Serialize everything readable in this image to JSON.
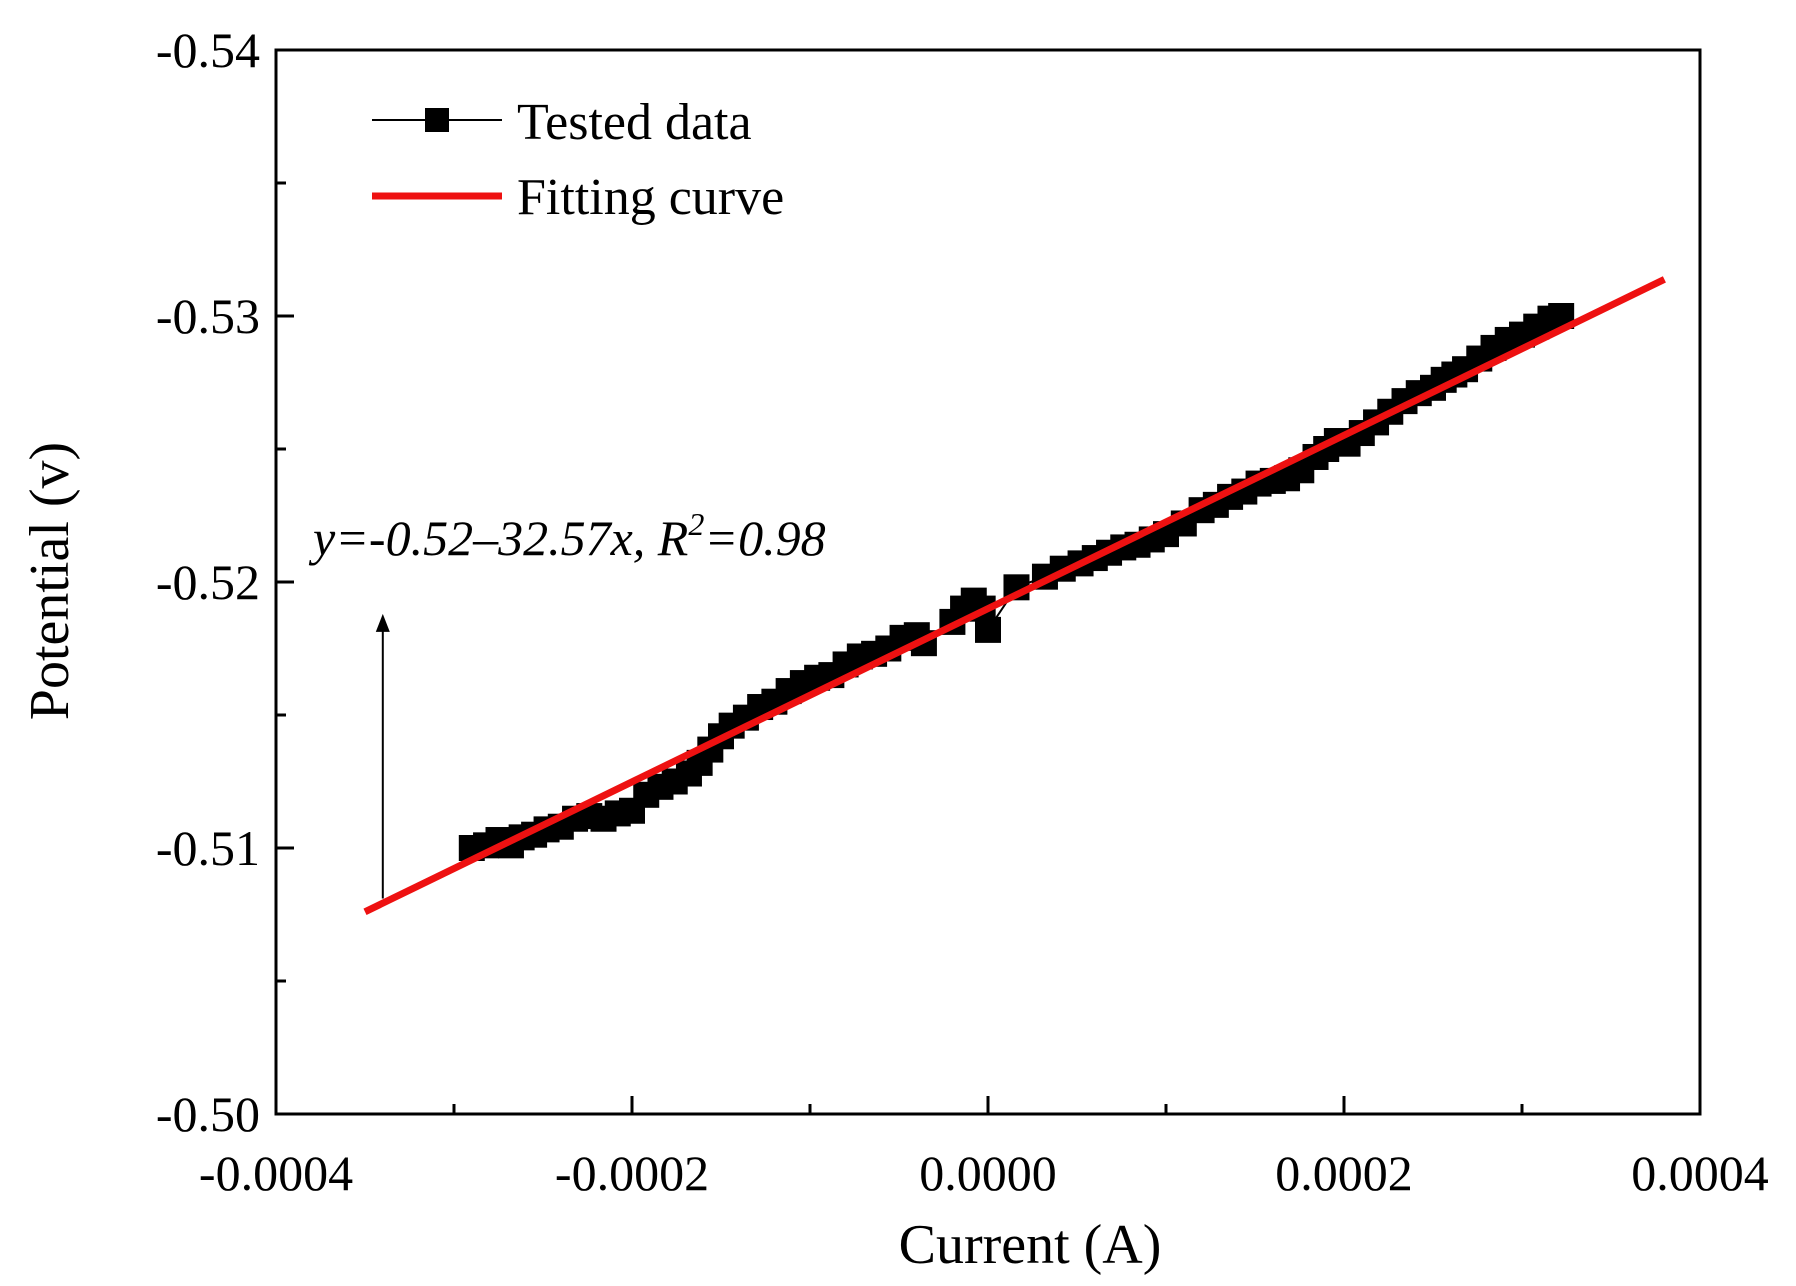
{
  "chart_data": {
    "type": "scatter",
    "title": "",
    "xlabel": "Current (A)",
    "ylabel": "Potential (v)",
    "xlim": [
      -0.0004,
      0.0004
    ],
    "ylim": [
      -0.5,
      -0.54
    ],
    "y_axis_inverted": true,
    "grid": false,
    "legend_position": "top-left",
    "x_ticks": [
      -0.0004,
      -0.0002,
      0.0,
      0.0002,
      0.0004
    ],
    "x_tick_labels": [
      "-0.0004",
      "-0.0002",
      "0.0000",
      "0.0002",
      "0.0004"
    ],
    "y_ticks": [
      -0.5,
      -0.51,
      -0.52,
      -0.53,
      -0.54
    ],
    "y_tick_labels": [
      "-0.50",
      "-0.51",
      "-0.52",
      "-0.53",
      "-0.54"
    ],
    "series": [
      {
        "name": "Tested data",
        "style": "line-with-square-markers",
        "color": "#000000",
        "points": [
          [
            -0.00029,
            -0.51
          ],
          [
            -0.000282,
            -0.5101
          ],
          [
            -0.000275,
            -0.5103
          ],
          [
            -0.000268,
            -0.5101
          ],
          [
            -0.000262,
            -0.5104
          ],
          [
            -0.000255,
            -0.5105
          ],
          [
            -0.000248,
            -0.5107
          ],
          [
            -0.00024,
            -0.5108
          ],
          [
            -0.000232,
            -0.5111
          ],
          [
            -0.000224,
            -0.5112
          ],
          [
            -0.000216,
            -0.5111
          ],
          [
            -0.000208,
            -0.5113
          ],
          [
            -0.0002,
            -0.5114
          ],
          [
            -0.000192,
            -0.512
          ],
          [
            -0.000184,
            -0.5123
          ],
          [
            -0.000176,
            -0.5125
          ],
          [
            -0.000168,
            -0.5128
          ],
          [
            -0.000162,
            -0.5132
          ],
          [
            -0.000156,
            -0.5137
          ],
          [
            -0.00015,
            -0.5142
          ],
          [
            -0.000144,
            -0.5146
          ],
          [
            -0.000136,
            -0.5149
          ],
          [
            -0.000128,
            -0.5153
          ],
          [
            -0.00012,
            -0.5155
          ],
          [
            -0.000112,
            -0.5159
          ],
          [
            -0.000104,
            -0.5162
          ],
          [
            -9.6e-05,
            -0.5164
          ],
          [
            -8.8e-05,
            -0.5165
          ],
          [
            -8e-05,
            -0.5169
          ],
          [
            -7.2e-05,
            -0.5172
          ],
          [
            -6.4e-05,
            -0.5173
          ],
          [
            -5.6e-05,
            -0.5175
          ],
          [
            -4.8e-05,
            -0.5179
          ],
          [
            -4e-05,
            -0.518
          ],
          [
            -3.6e-05,
            -0.5177
          ],
          [
            -2e-05,
            -0.5185
          ],
          [
            -1.4e-05,
            -0.519
          ],
          [
            -8e-06,
            -0.5193
          ],
          [
            -3e-06,
            -0.519
          ],
          [
            0.0,
            -0.5182
          ],
          [
            1.6e-05,
            -0.5198
          ],
          [
            3.2e-05,
            -0.5202
          ],
          [
            4.2e-05,
            -0.5205
          ],
          [
            5.2e-05,
            -0.5207
          ],
          [
            6e-05,
            -0.5209
          ],
          [
            6.8e-05,
            -0.5211
          ],
          [
            7.6e-05,
            -0.5213
          ],
          [
            8.4e-05,
            -0.5214
          ],
          [
            9.2e-05,
            -0.5216
          ],
          [
            0.0001,
            -0.5218
          ],
          [
            0.00011,
            -0.5222
          ],
          [
            0.00012,
            -0.5227
          ],
          [
            0.000128,
            -0.5229
          ],
          [
            0.000136,
            -0.5232
          ],
          [
            0.000144,
            -0.5234
          ],
          [
            0.000152,
            -0.5237
          ],
          [
            0.00016,
            -0.5238
          ],
          [
            0.000168,
            -0.5239
          ],
          [
            0.000176,
            -0.5242
          ],
          [
            0.000184,
            -0.5247
          ],
          [
            0.00019,
            -0.525
          ],
          [
            0.000196,
            -0.5253
          ],
          [
            0.000202,
            -0.5252
          ],
          [
            0.00021,
            -0.5256
          ],
          [
            0.000218,
            -0.526
          ],
          [
            0.000226,
            -0.5264
          ],
          [
            0.000234,
            -0.5268
          ],
          [
            0.000242,
            -0.5271
          ],
          [
            0.00025,
            -0.5273
          ],
          [
            0.000256,
            -0.5276
          ],
          [
            0.000262,
            -0.5278
          ],
          [
            0.000268,
            -0.528
          ],
          [
            0.000276,
            -0.5284
          ],
          [
            0.000284,
            -0.5288
          ],
          [
            0.000292,
            -0.5291
          ],
          [
            0.0003,
            -0.5293
          ],
          [
            0.000308,
            -0.5296
          ],
          [
            0.000316,
            -0.5299
          ],
          [
            0.000322,
            -0.53
          ]
        ]
      },
      {
        "name": "Fitting curve",
        "style": "line",
        "color": "#ee1111",
        "x_range": [
          -0.00035,
          0.00038
        ],
        "intercept": -0.519,
        "slope": -32.57
      }
    ],
    "annotations": [
      {
        "text_parts": [
          "y=-0.52–32.57x, R",
          "2",
          "=0.98"
        ],
        "arrow_from": [
          -0.00034,
          -0.5081
        ],
        "arrow_to": [
          -0.00034,
          -0.5188
        ]
      }
    ]
  }
}
